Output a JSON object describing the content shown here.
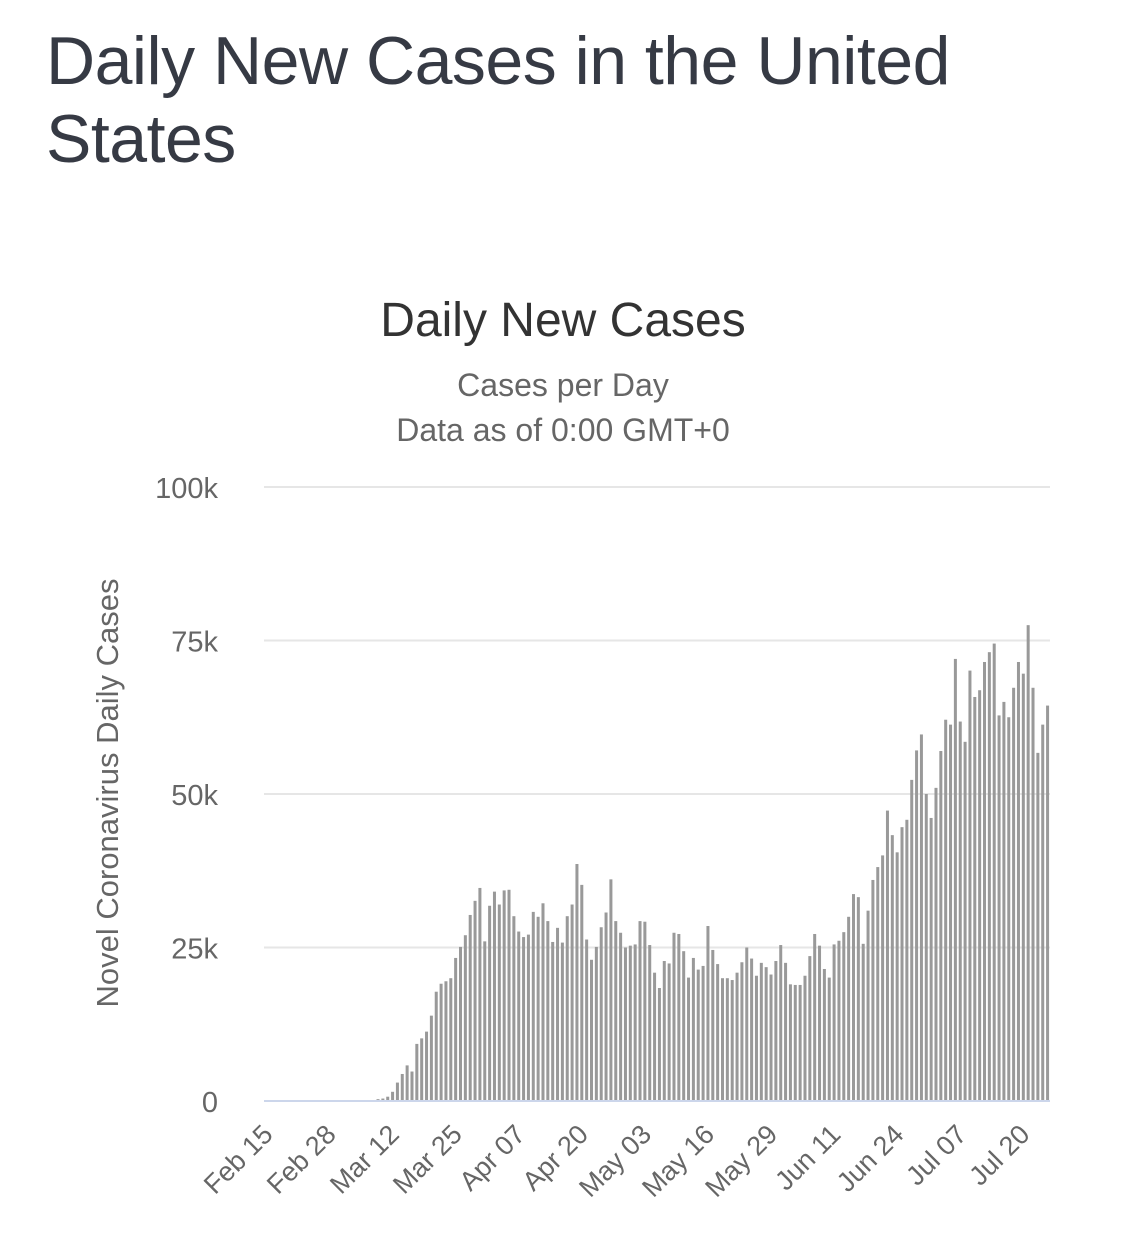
{
  "page": {
    "title": "Daily New Cases in the United States"
  },
  "colors": {
    "bar": "#999999",
    "grid": "#e6e6e6",
    "baseline": "#ccd6eb",
    "title": "#333333",
    "subtitle": "#666666"
  },
  "chart_data": {
    "type": "bar",
    "title": "Daily New Cases",
    "subtitle_line1": "Cases per Day",
    "subtitle_line2": "Data as of 0:00 GMT+0",
    "ylabel": "Novel Coronavirus Daily Cases",
    "xlabel": "",
    "ylim": [
      0,
      100000
    ],
    "yticks": [
      0,
      25000,
      50000,
      75000,
      100000
    ],
    "ytick_labels": [
      "0",
      "25k",
      "50k",
      "75k",
      "100k"
    ],
    "x_start": "Feb 15",
    "xtick_labels": [
      "Feb 15",
      "Feb 28",
      "Mar 12",
      "Mar 25",
      "Apr 07",
      "Apr 20",
      "May 03",
      "May 16",
      "May 29",
      "Jun 11",
      "Jun 24",
      "Jul 07",
      "Jul 20"
    ],
    "xtick_interval_days": 13,
    "series": [
      {
        "name": "Daily Cases",
        "values": [
          0,
          0,
          0,
          0,
          0,
          0,
          0,
          0,
          0,
          0,
          0,
          0,
          0,
          0,
          0,
          0,
          0,
          0,
          0,
          0,
          0,
          100,
          100,
          300,
          400,
          700,
          1500,
          3000,
          4400,
          5800,
          4800,
          9300,
          10200,
          11300,
          13900,
          17800,
          19100,
          19500,
          20000,
          23300,
          25100,
          27000,
          30300,
          32600,
          34700,
          26000,
          31800,
          34100,
          32000,
          34300,
          34400,
          30100,
          27600,
          26700,
          27100,
          30800,
          30000,
          32200,
          29300,
          25900,
          28200,
          25800,
          30100,
          32000,
          38600,
          35200,
          26300,
          23000,
          25100,
          28300,
          30700,
          36100,
          29300,
          27400,
          25000,
          25300,
          25500,
          29300,
          29200,
          25400,
          20900,
          18400,
          22800,
          22400,
          27400,
          27200,
          24400,
          20100,
          23300,
          21400,
          22000,
          28500,
          24600,
          22300,
          20000,
          20000,
          19700,
          20900,
          22600,
          25000,
          23200,
          20400,
          22500,
          21800,
          20600,
          22800,
          25400,
          22500,
          19000,
          18900,
          18900,
          20400,
          23600,
          27200,
          25300,
          21500,
          20100,
          25500,
          26100,
          27500,
          30000,
          33700,
          33200,
          25600,
          31000,
          36000,
          38100,
          40000,
          47300,
          43300,
          40500,
          44600,
          45800,
          52300,
          57100,
          59700,
          50000,
          46100,
          51000,
          57000,
          62100,
          61300,
          72000,
          61800,
          58500,
          70100,
          65800,
          66900,
          71500,
          73100,
          74500,
          62800,
          65000,
          62500,
          67300,
          71500,
          69600,
          77500,
          67300,
          56700,
          61300,
          64400
        ]
      }
    ]
  }
}
